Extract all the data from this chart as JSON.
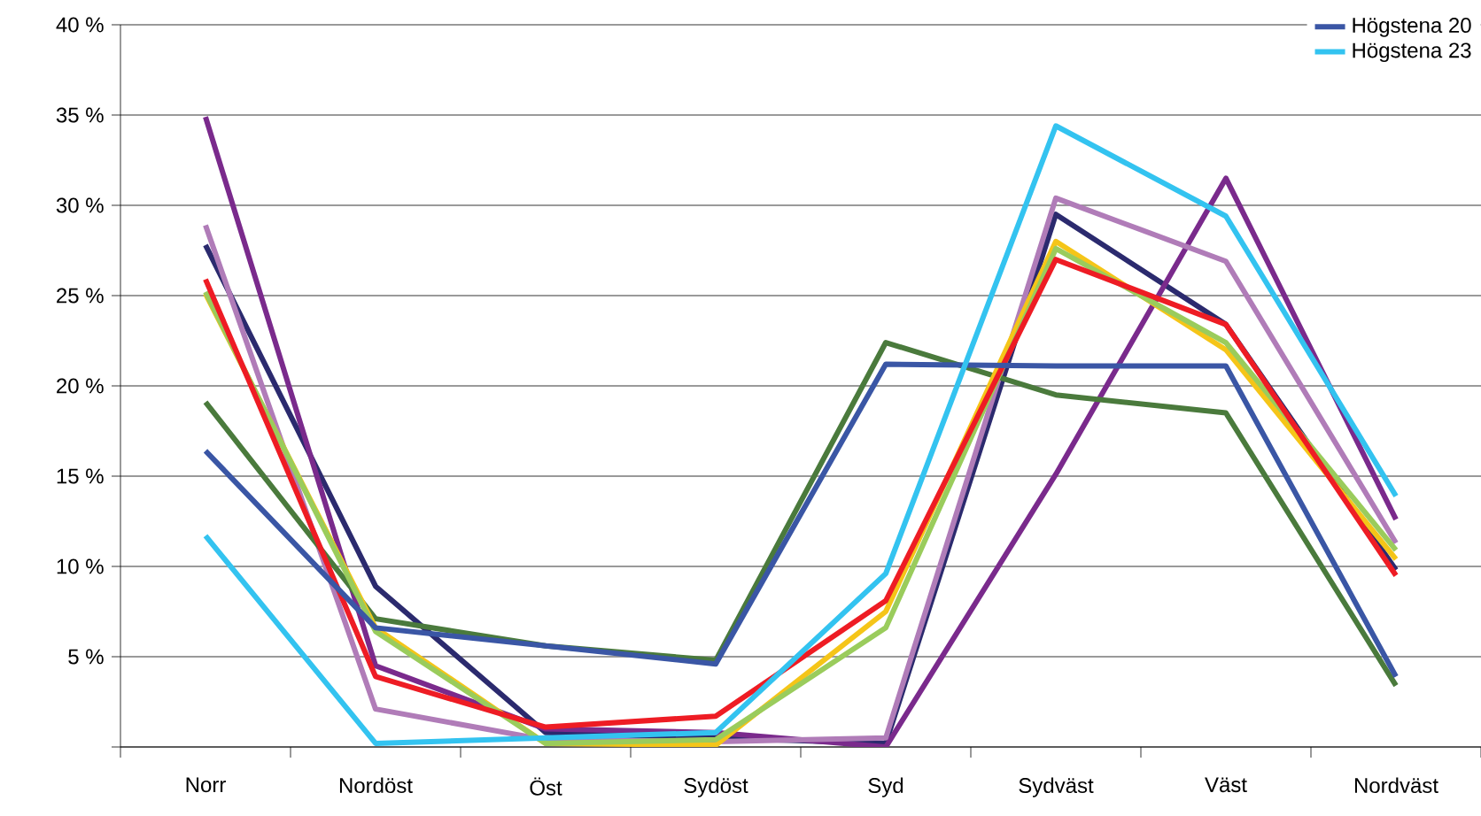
{
  "chart_data": {
    "type": "line",
    "categories": [
      "Norr",
      "Nordöst",
      "Öst",
      "Sydöst",
      "Syd",
      "Sydväst",
      "Väst",
      "Nordväst"
    ],
    "series": [
      {
        "color": "#2b2a6e",
        "values": [
          27.8,
          8.9,
          0.8,
          0.5,
          0.2,
          29.5,
          23.4,
          9.8
        ]
      },
      {
        "color": "#7a2a8c",
        "values": [
          34.9,
          4.5,
          1.0,
          0.8,
          0.0,
          15.1,
          31.5,
          12.6
        ]
      },
      {
        "color": "#b07cb8",
        "values": [
          28.9,
          2.1,
          0.4,
          0.3,
          0.5,
          30.4,
          26.9,
          11.3
        ]
      },
      {
        "color": "#4a7a3c",
        "values": [
          19.1,
          7.1,
          5.6,
          4.8,
          22.4,
          19.5,
          18.5,
          3.4
        ]
      },
      {
        "color": "#f5c518",
        "values": [
          25.1,
          6.6,
          0.2,
          0.1,
          7.5,
          28.0,
          22.0,
          10.4
        ]
      },
      {
        "color": "#9acc5c",
        "values": [
          25.2,
          6.4,
          0.2,
          0.4,
          6.6,
          27.6,
          22.4,
          10.9
        ]
      },
      {
        "color": "#ee1c24",
        "values": [
          25.9,
          3.9,
          1.1,
          1.7,
          8.1,
          27.0,
          23.4,
          9.5
        ]
      },
      {
        "name": "Högstena 20",
        "color": "#3a56a5",
        "values": [
          16.4,
          6.6,
          5.6,
          4.6,
          21.2,
          21.1,
          21.1,
          3.9
        ]
      },
      {
        "name": "Högstena 23",
        "color": "#33c3f0",
        "values": [
          11.7,
          0.2,
          0.5,
          0.8,
          9.6,
          34.4,
          29.4,
          13.9
        ]
      }
    ],
    "ylim": [
      0,
      40
    ],
    "yticks": [
      {
        "value": 0,
        "label": null
      },
      {
        "value": 5,
        "label": "5 %"
      },
      {
        "value": 10,
        "label": "10 %"
      },
      {
        "value": 15,
        "label": "15 %"
      },
      {
        "value": 20,
        "label": "20 %"
      },
      {
        "value": 25,
        "label": "25 %"
      },
      {
        "value": 30,
        "label": "30 %"
      },
      {
        "value": 35,
        "label": "35 %"
      },
      {
        "value": 40,
        "label": "40 %"
      }
    ],
    "grid": "y",
    "legend": "top right",
    "marker": "none",
    "line_style": "solid"
  }
}
